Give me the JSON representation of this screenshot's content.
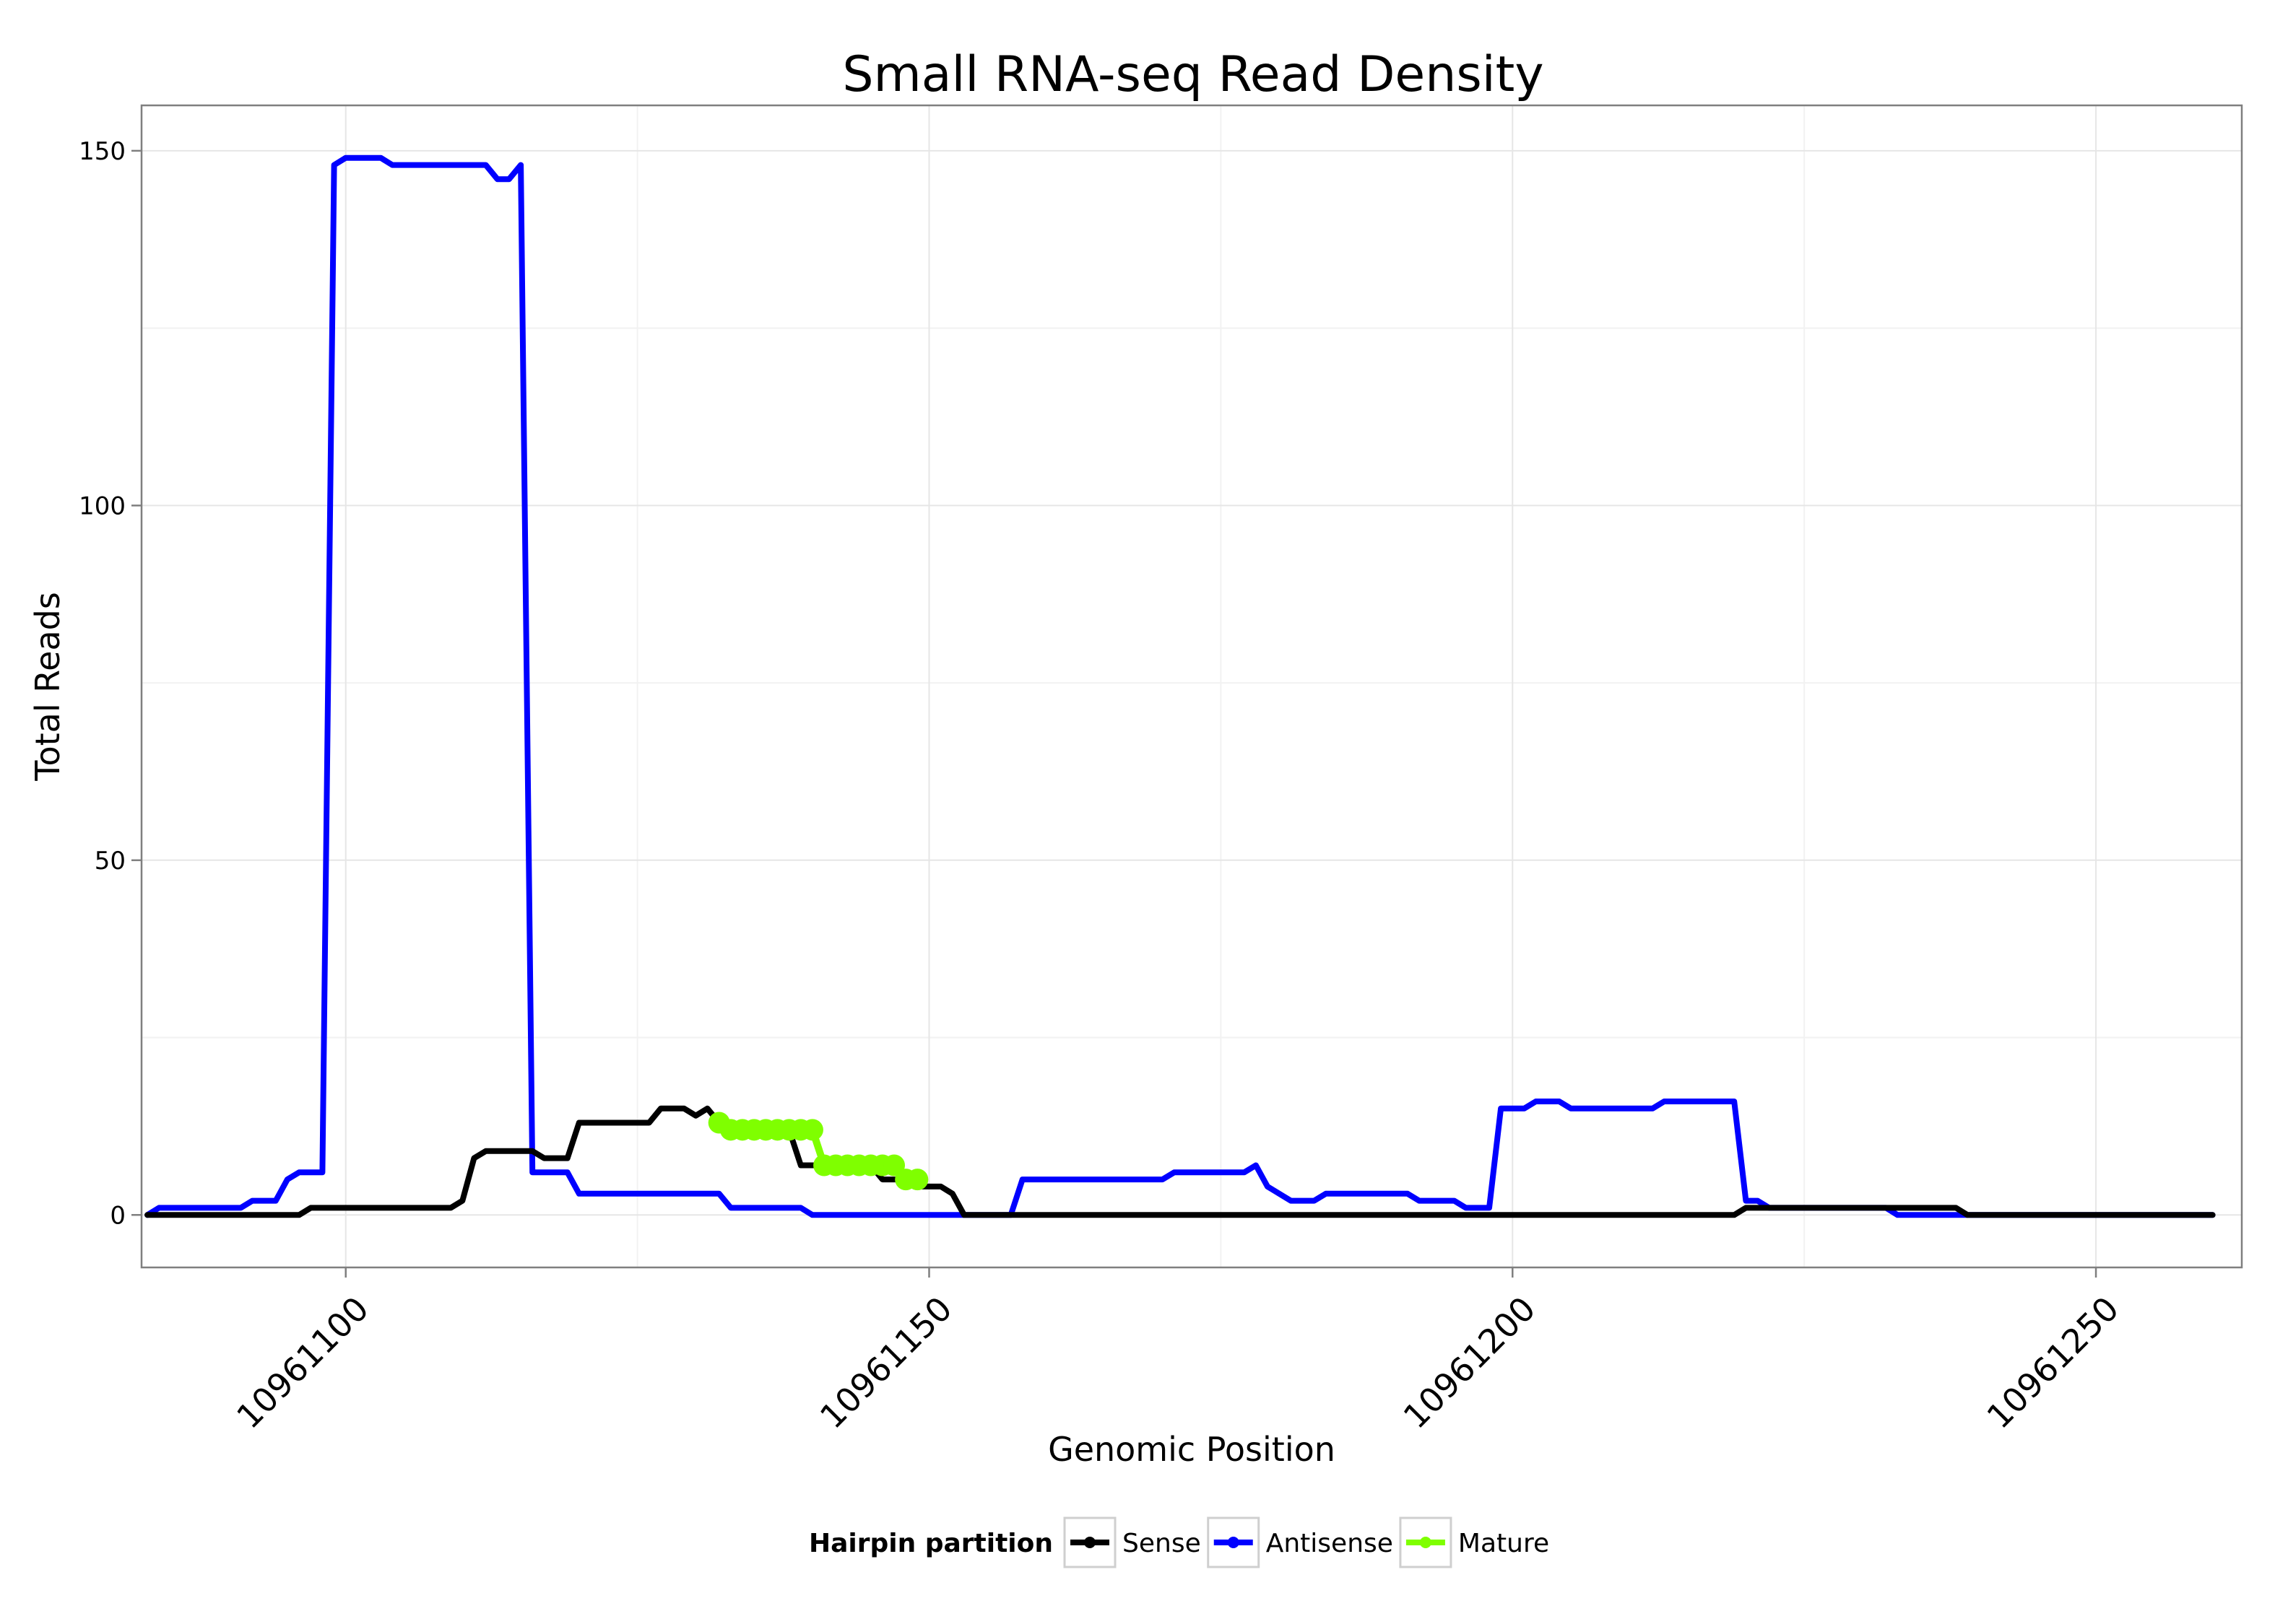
{
  "chart_data": {
    "type": "line",
    "title": "Small RNA-seq Read Density",
    "xlabel": "Genomic Position",
    "ylabel": "Total Reads",
    "xlim": [
      10961082.5,
      10961262.5
    ],
    "ylim": [
      -7.4,
      156.4
    ],
    "x_ticks": [
      10961100,
      10961150,
      10961200,
      10961250
    ],
    "x_tick_labels": [
      "10961100",
      "10961150",
      "10961200",
      "10961250"
    ],
    "y_ticks": [
      0,
      50,
      100,
      150
    ],
    "y_tick_labels": [
      "0",
      "50",
      "100",
      "150"
    ],
    "grid": true,
    "legend": {
      "title": "Hairpin partition",
      "position": "bottom",
      "entries": [
        "Sense",
        "Antisense",
        "Mature"
      ]
    },
    "series": [
      {
        "name": "Antisense",
        "color": "#0000ff",
        "points": [
          [
            10961083,
            0
          ],
          [
            10961084,
            1
          ],
          [
            10961091,
            1
          ],
          [
            10961092,
            2
          ],
          [
            10961094,
            2
          ],
          [
            10961095,
            5
          ],
          [
            10961096,
            6
          ],
          [
            10961098,
            6
          ],
          [
            10961099,
            148
          ],
          [
            10961100,
            149
          ],
          [
            10961103,
            149
          ],
          [
            10961104,
            148
          ],
          [
            10961112,
            148
          ],
          [
            10961113,
            146
          ],
          [
            10961114,
            146
          ],
          [
            10961115,
            148
          ],
          [
            10961116,
            6
          ],
          [
            10961119,
            6
          ],
          [
            10961120,
            3
          ],
          [
            10961132,
            3
          ],
          [
            10961133,
            1
          ],
          [
            10961139,
            1
          ],
          [
            10961140,
            0
          ],
          [
            10961157,
            0
          ],
          [
            10961158,
            5
          ],
          [
            10961170,
            5
          ],
          [
            10961171,
            6
          ],
          [
            10961177,
            6
          ],
          [
            10961178,
            7
          ],
          [
            10961179,
            4
          ],
          [
            10961181,
            2
          ],
          [
            10961183,
            2
          ],
          [
            10961184,
            3
          ],
          [
            10961191,
            3
          ],
          [
            10961192,
            2
          ],
          [
            10961195,
            2
          ],
          [
            10961196,
            1
          ],
          [
            10961198,
            1
          ],
          [
            10961199,
            15
          ],
          [
            10961201,
            15
          ],
          [
            10961202,
            16
          ],
          [
            10961204,
            16
          ],
          [
            10961205,
            15
          ],
          [
            10961212,
            15
          ],
          [
            10961213,
            16
          ],
          [
            10961219,
            16
          ],
          [
            10961220,
            2
          ],
          [
            10961221,
            2
          ],
          [
            10961222,
            1
          ],
          [
            10961232,
            1
          ],
          [
            10961233,
            0
          ],
          [
            10961260,
            0
          ]
        ]
      },
      {
        "name": "Sense",
        "color": "#000000",
        "points": [
          [
            10961083,
            0
          ],
          [
            10961096,
            0
          ],
          [
            10961097,
            1
          ],
          [
            10961109,
            1
          ],
          [
            10961110,
            2
          ],
          [
            10961111,
            8
          ],
          [
            10961112,
            9
          ],
          [
            10961116,
            9
          ],
          [
            10961117,
            8
          ],
          [
            10961119,
            8
          ],
          [
            10961120,
            13
          ],
          [
            10961126,
            13
          ],
          [
            10961127,
            15
          ],
          [
            10961129,
            15
          ],
          [
            10961130,
            14
          ],
          [
            10961131,
            15
          ],
          [
            10961132,
            13
          ],
          [
            10961138,
            12
          ],
          [
            10961139,
            7
          ],
          [
            10961145,
            7
          ],
          [
            10961146,
            5
          ],
          [
            10961148,
            5
          ],
          [
            10961149,
            4
          ],
          [
            10961151,
            4
          ],
          [
            10961152,
            3
          ],
          [
            10961153,
            0
          ],
          [
            10961219,
            0
          ],
          [
            10961220,
            1
          ],
          [
            10961238,
            1
          ],
          [
            10961239,
            0
          ],
          [
            10961260,
            0
          ]
        ]
      },
      {
        "name": "Mature",
        "color": "#7fff00",
        "markers": true,
        "points": [
          [
            10961132,
            13
          ],
          [
            10961133,
            12
          ],
          [
            10961134,
            12
          ],
          [
            10961135,
            12
          ],
          [
            10961136,
            12
          ],
          [
            10961137,
            12
          ],
          [
            10961138,
            12
          ],
          [
            10961139,
            12
          ],
          [
            10961140,
            12
          ],
          [
            10961141,
            7
          ],
          [
            10961142,
            7
          ],
          [
            10961143,
            7
          ],
          [
            10961144,
            7
          ],
          [
            10961145,
            7
          ],
          [
            10961146,
            7
          ],
          [
            10961147,
            7
          ],
          [
            10961148,
            5
          ],
          [
            10961149,
            5
          ]
        ]
      }
    ]
  }
}
